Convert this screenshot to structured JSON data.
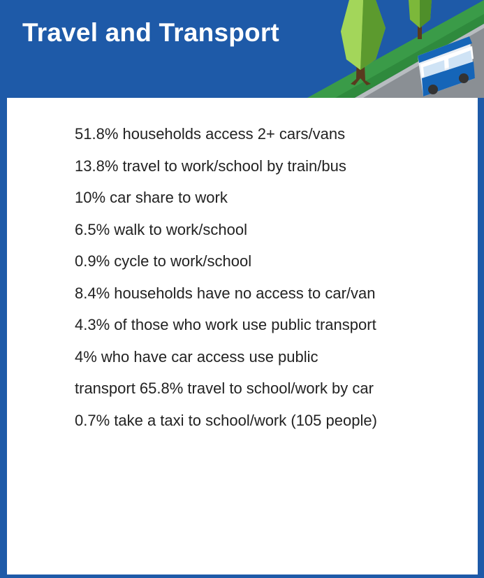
{
  "header": {
    "title": "Travel and Transport",
    "illustration": "tree-road-bus-illustration"
  },
  "colors": {
    "header_blue": "#1e5aa8",
    "road_green": "#3a9b48",
    "bus_blue": "#1565b8",
    "text": "#222222"
  },
  "stats": [
    "51.8% households access 2+ cars/vans",
    "13.8% travel to work/school by train/bus",
    "10% car share to work",
    "6.5% walk to work/school",
    "0.9% cycle to work/school",
    "8.4% households have no access to car/van",
    "4.3% of those who work use public transport",
    "4% who have car access use public",
    "transport 65.8% travel to school/work by car",
    "0.7% take a taxi to school/work (105 people)"
  ]
}
